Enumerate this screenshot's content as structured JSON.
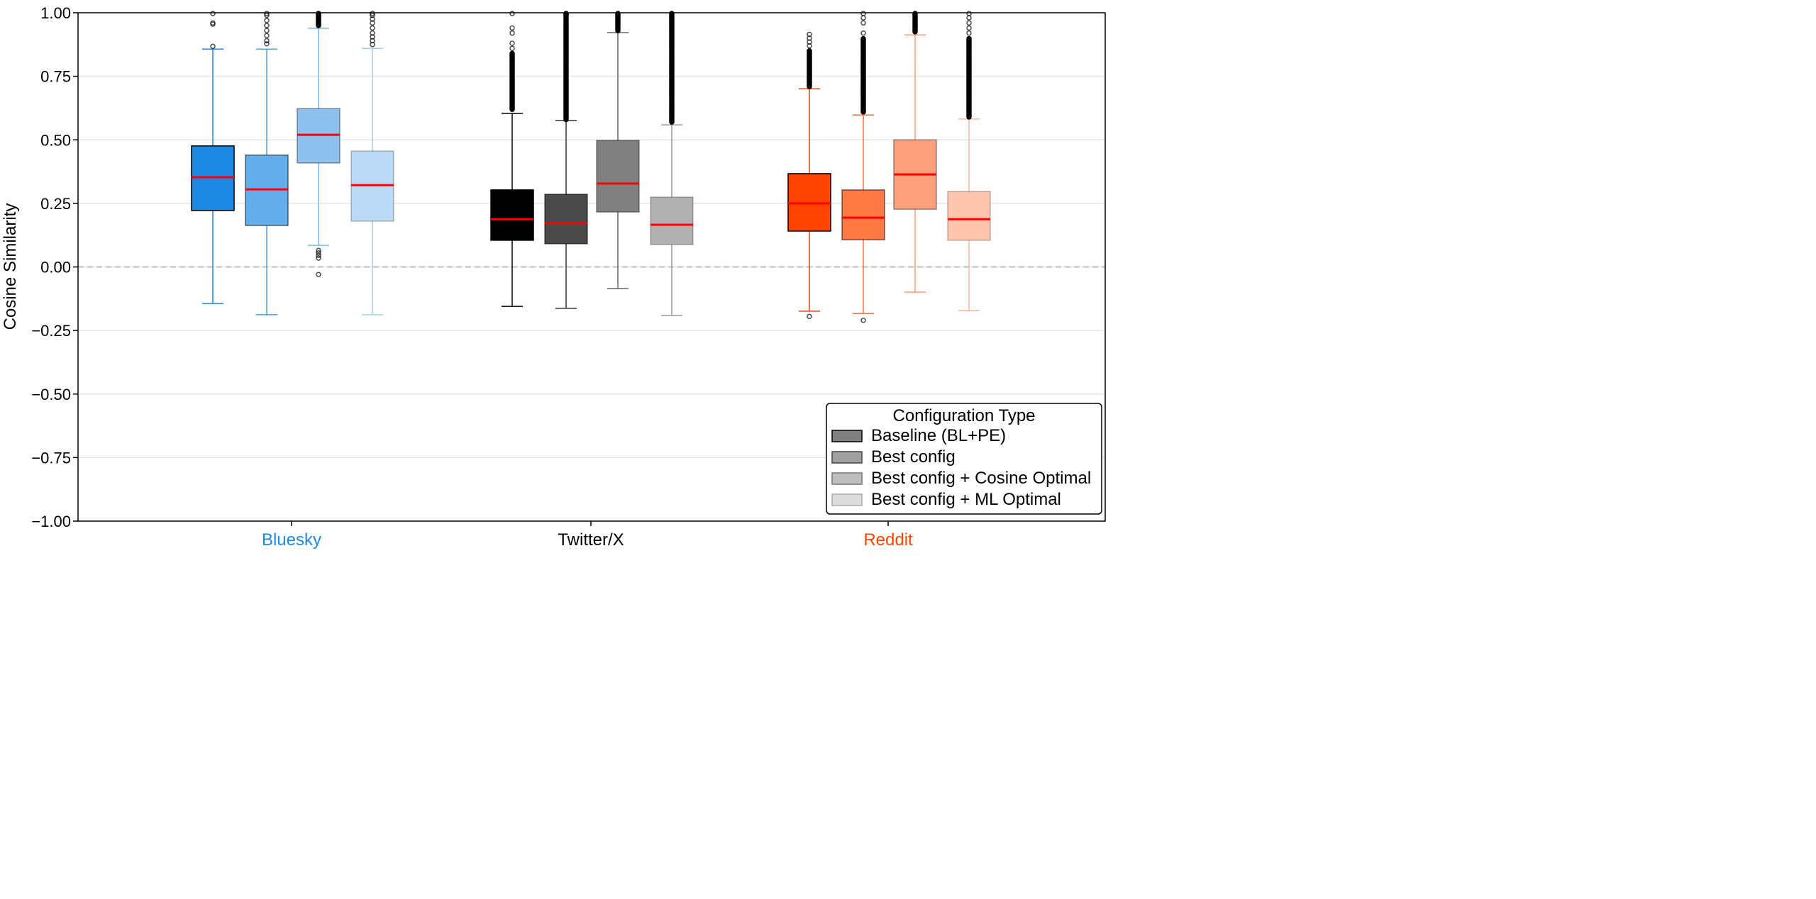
{
  "chart_data": {
    "type": "box",
    "ylabel": "Cosine Similarity",
    "xlabel": "",
    "ylim": [
      -1.0,
      1.0
    ],
    "yticks": [
      "−1.00",
      "−0.75",
      "−0.50",
      "−0.25",
      "0.00",
      "0.25",
      "0.50",
      "0.75",
      "1.00"
    ],
    "ytick_values": [
      -1.0,
      -0.75,
      -0.5,
      -0.25,
      0,
      0.25,
      0.5,
      0.75,
      1.0
    ],
    "grid": "horizontal",
    "reference_line": 0.0,
    "median_color": "#FF0000",
    "categories": [
      {
        "label": "Bluesky",
        "color": "#1E88E5"
      },
      {
        "label": "Twitter/X",
        "color": "#000000"
      },
      {
        "label": "Reddit",
        "color": "#FF4500"
      }
    ],
    "legend": {
      "title": "Configuration Type",
      "placement": "lower-right",
      "entries": [
        {
          "label": "Baseline (BL+PE)",
          "color": "#808080"
        },
        {
          "label": "Best config",
          "color": "#A0A0A0"
        },
        {
          "label": "Best config + Cosine Optimal",
          "color": "#BEBEBE"
        },
        {
          "label": "Best config + ML Optimal",
          "color": "#DCDCDC"
        }
      ]
    },
    "groups": [
      {
        "category": "Bluesky",
        "boxes": [
          {
            "config": "Baseline (BL+PE)",
            "fill": "#1E88E5",
            "whisker_color": "#1E88E5",
            "whislo": -0.144,
            "q1": 0.222,
            "med": 0.353,
            "q3": 0.476,
            "whishi": 0.857,
            "outliers": [
              0.868,
              0.955,
              0.96,
              1.0
            ],
            "dense_outliers": null
          },
          {
            "config": "Best config",
            "fill": "#64ADEB",
            "whisker_color": "#4C9FE8",
            "whislo": -0.188,
            "q1": 0.163,
            "med": 0.305,
            "q3": 0.44,
            "whishi": 0.857,
            "outliers": [
              0.878,
              0.89,
              0.91,
              0.93,
              0.95,
              0.97,
              0.99,
              1.0
            ],
            "dense_outliers": null
          },
          {
            "config": "Best config + Cosine Optimal",
            "fill": "#8FC1F0",
            "whisker_color": "#7AB6EE",
            "whislo": 0.085,
            "q1": 0.409,
            "med": 0.52,
            "q3": 0.623,
            "whishi": 0.939,
            "outliers": [
              -0.03,
              0.035,
              0.045,
              0.055,
              0.065
            ],
            "dense_outliers": [
              0.95,
              1.0
            ]
          },
          {
            "config": "Best config + ML Optimal",
            "fill": "#BBDAF5",
            "whisker_color": "#A6CEF3",
            "whislo": -0.188,
            "q1": 0.18,
            "med": 0.322,
            "q3": 0.456,
            "whishi": 0.86,
            "outliers": [
              0.875,
              0.89,
              0.905,
              0.92,
              0.94,
              0.96,
              0.975,
              0.99,
              1.0
            ],
            "dense_outliers": null
          }
        ]
      },
      {
        "category": "Twitter/X",
        "boxes": [
          {
            "config": "Baseline (BL+PE)",
            "fill": "#000000",
            "whisker_color": "#000000",
            "whislo": -0.155,
            "q1": 0.105,
            "med": 0.188,
            "q3": 0.303,
            "whishi": 0.604,
            "outliers": [
              0.86,
              0.88,
              0.92,
              0.94,
              1.0
            ],
            "dense_outliers": [
              0.62,
              0.84
            ]
          },
          {
            "config": "Best config",
            "fill": "#4A4A4A",
            "whisker_color": "#333333",
            "whislo": -0.163,
            "q1": 0.091,
            "med": 0.172,
            "q3": 0.286,
            "whishi": 0.576,
            "outliers": [],
            "dense_outliers": [
              0.58,
              1.0
            ]
          },
          {
            "config": "Best config + Cosine Optimal",
            "fill": "#808080",
            "whisker_color": "#666666",
            "whislo": -0.085,
            "q1": 0.216,
            "med": 0.328,
            "q3": 0.498,
            "whishi": 0.922,
            "outliers": [],
            "dense_outliers": [
              0.93,
              1.0
            ]
          },
          {
            "config": "Best config + ML Optimal",
            "fill": "#B0B0B0",
            "whisker_color": "#999999",
            "whislo": -0.191,
            "q1": 0.088,
            "med": 0.166,
            "q3": 0.275,
            "whishi": 0.559,
            "outliers": [],
            "dense_outliers": [
              0.57,
              1.0
            ]
          }
        ]
      },
      {
        "category": "Reddit",
        "boxes": [
          {
            "config": "Baseline (BL+PE)",
            "fill": "#FF4500",
            "whisker_color": "#E0440A",
            "whislo": -0.174,
            "q1": 0.141,
            "med": 0.25,
            "q3": 0.367,
            "whishi": 0.701,
            "outliers": [
              -0.195,
              0.87,
              0.885,
              0.9,
              0.915
            ],
            "dense_outliers": [
              0.71,
              0.85
            ]
          },
          {
            "config": "Best config",
            "fill": "#FF7A45",
            "whisker_color": "#F07040",
            "whislo": -0.183,
            "q1": 0.107,
            "med": 0.194,
            "q3": 0.303,
            "whishi": 0.598,
            "outliers": [
              -0.21,
              0.92,
              0.96,
              0.98,
              1.0
            ],
            "dense_outliers": [
              0.61,
              0.9
            ]
          },
          {
            "config": "Best config + Cosine Optimal",
            "fill": "#FFA07D",
            "whisker_color": "#F59A7A",
            "whislo": -0.099,
            "q1": 0.227,
            "med": 0.364,
            "q3": 0.5,
            "whishi": 0.913,
            "outliers": [],
            "dense_outliers": [
              0.925,
              1.0
            ]
          },
          {
            "config": "Best config + ML Optimal",
            "fill": "#FFC4AE",
            "whisker_color": "#F5B8A4",
            "whislo": -0.172,
            "q1": 0.105,
            "med": 0.188,
            "q3": 0.297,
            "whishi": 0.582,
            "outliers": [
              0.92,
              0.94,
              0.96,
              0.98,
              1.0
            ],
            "dense_outliers": [
              0.59,
              0.9
            ]
          }
        ]
      }
    ]
  }
}
